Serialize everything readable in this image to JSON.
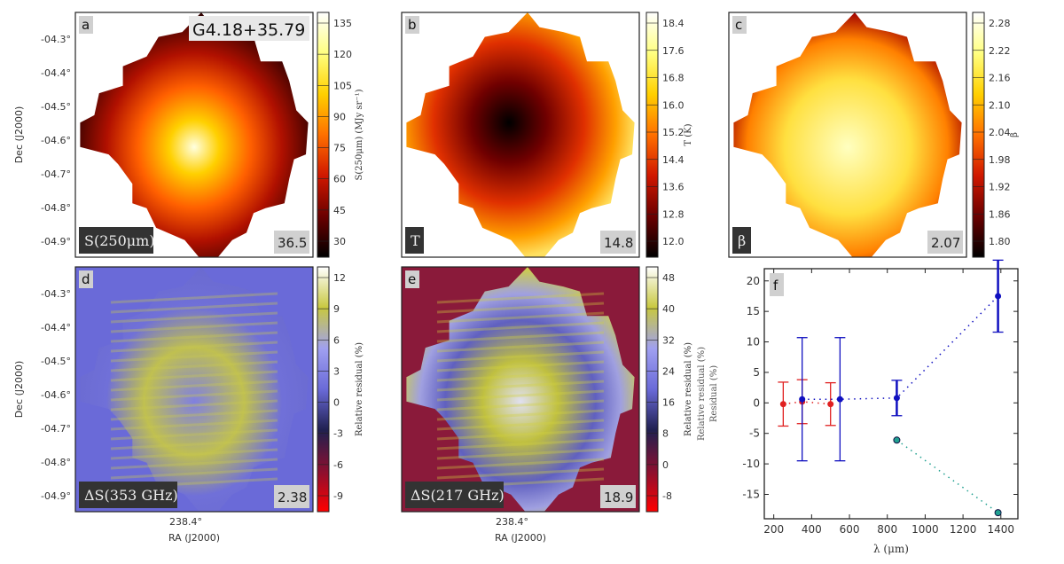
{
  "figure": {
    "dec_label": "Dec (J2000)",
    "ra_label": "RA (J2000)",
    "ra_tick": "238.4°",
    "dec_ticks": [
      "-04.3°",
      "-04.4°",
      "-04.5°",
      "-04.6°",
      "-04.7°",
      "-04.8°",
      "-04.9°"
    ],
    "source_name": "G4.18+35.79",
    "panels": [
      {
        "letter": "a",
        "label": "S(250μm)",
        "value": "36.5",
        "cbar_label": "S(250μm) (MJy sr⁻¹)",
        "cbar_ticks": [
          "30",
          "45",
          "60",
          "75",
          "90",
          "105",
          "120",
          "135"
        ],
        "cmap": [
          "#000000",
          "#6a0000",
          "#d01800",
          "#ff7000",
          "#ffd000",
          "#ffff80",
          "#ffffff"
        ]
      },
      {
        "letter": "b",
        "label": "T",
        "value": "14.8",
        "cbar_label": "T (K)",
        "cbar_ticks": [
          "12.0",
          "12.8",
          "13.6",
          "14.4",
          "15.2",
          "16.0",
          "16.8",
          "17.6",
          "18.4"
        ],
        "cmap": [
          "#000000",
          "#6a0000",
          "#d01800",
          "#ff7000",
          "#ffd000",
          "#ffff80",
          "#ffffff"
        ]
      },
      {
        "letter": "c",
        "label": "β",
        "value": "2.07",
        "cbar_label": "β",
        "cbar_ticks": [
          "1.80",
          "1.86",
          "1.92",
          "1.98",
          "2.04",
          "2.10",
          "2.16",
          "2.22",
          "2.28"
        ],
        "cmap": [
          "#000000",
          "#6a0000",
          "#d01800",
          "#ff7000",
          "#ffd000",
          "#ffff80",
          "#ffffff"
        ]
      },
      {
        "letter": "d",
        "label": "ΔS(353 GHz)",
        "value": "2.38",
        "cbar_label": "Relative residual (%)",
        "cbar_ticks": [
          "-9",
          "-6",
          "-3",
          "0",
          "3",
          "6",
          "9",
          "12"
        ],
        "cmap": [
          "#ff0000",
          "#8a1030",
          "#202050",
          "#6a6ad8",
          "#a0a0f0",
          "#c8c840",
          "#ffffff"
        ]
      },
      {
        "letter": "e",
        "label": "ΔS(217 GHz)",
        "value": "18.9",
        "cbar_label": "Relative residual (%)",
        "cbar_ticks": [
          "-8",
          "0",
          "8",
          "16",
          "24",
          "32",
          "40",
          "48"
        ],
        "cmap": [
          "#ff0000",
          "#8a1030",
          "#202050",
          "#6a6ad8",
          "#a0a0f0",
          "#c8c840",
          "#ffffff"
        ]
      }
    ]
  },
  "chart_data": {
    "type": "scatter",
    "panel_letter": "f",
    "xlabel": "λ (μm)",
    "ylabel": "Relative residual (%)",
    "ylabel2": "Residual (%)",
    "xlim": [
      150,
      1490
    ],
    "ylim": [
      -19,
      22
    ],
    "xticks": [
      200,
      400,
      600,
      800,
      1000,
      1200,
      1400
    ],
    "yticks": [
      -15,
      -10,
      -5,
      0,
      5,
      10,
      15,
      20
    ],
    "series": [
      {
        "name": "red",
        "color": "#e02020",
        "x": [
          250,
          350,
          500
        ],
        "y": [
          -0.2,
          0.2,
          -0.2
        ],
        "err": [
          3.6,
          3.6,
          3.5
        ]
      },
      {
        "name": "blue",
        "color": "#1010c0",
        "x": [
          350,
          550,
          850,
          1385
        ],
        "y": [
          0.6,
          0.6,
          0.8,
          17.5
        ],
        "err": [
          10.1,
          10.1,
          2.9,
          5.9
        ]
      },
      {
        "name": "cyan",
        "color": "#20a090",
        "x": [
          850,
          1385
        ],
        "y": [
          -6.1,
          -18.0
        ],
        "err": [
          0,
          0
        ]
      }
    ]
  }
}
